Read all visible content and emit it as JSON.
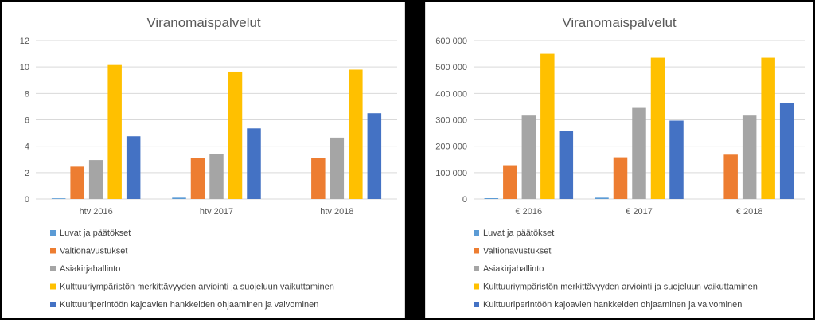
{
  "chart_data": [
    {
      "type": "bar",
      "title": "Viranomaispalvelut",
      "categories": [
        "htv 2016",
        "htv 2017",
        "htv 2018"
      ],
      "ylim": [
        0,
        12
      ],
      "yticks": [
        0,
        2,
        4,
        6,
        8,
        10,
        12
      ],
      "ytick_labels": [
        "0",
        "2",
        "4",
        "6",
        "8",
        "10",
        "12"
      ],
      "grid": true,
      "legend_position": "bottom",
      "series": [
        {
          "name": "Luvat ja päätökset",
          "color": "#5B9BD5",
          "values": [
            0.05,
            0.1,
            0
          ]
        },
        {
          "name": "Valtionavustukset",
          "color": "#ED7D31",
          "values": [
            2.45,
            3.1,
            3.1
          ]
        },
        {
          "name": "Asiakirjahallinto",
          "color": "#A5A5A5",
          "values": [
            2.95,
            3.4,
            4.65
          ]
        },
        {
          "name": "Kulttuuriympäristön merkittävyyden arviointi ja suojeluun vaikuttaminen",
          "color": "#FFC000",
          "values": [
            10.15,
            9.65,
            9.8
          ]
        },
        {
          "name": "Kulttuuriperintöön kajoavien hankkeiden ohjaaminen ja valvominen",
          "color": "#4472C4",
          "values": [
            4.75,
            5.35,
            6.5
          ]
        }
      ]
    },
    {
      "type": "bar",
      "title": "Viranomaispalvelut",
      "categories": [
        "€ 2016",
        "€ 2017",
        "€ 2018"
      ],
      "ylim": [
        0,
        600000
      ],
      "yticks": [
        0,
        100000,
        200000,
        300000,
        400000,
        500000,
        600000
      ],
      "ytick_labels": [
        "0",
        "100 000",
        "200 000",
        "300 000",
        "400 000",
        "500 000",
        "600 000"
      ],
      "grid": true,
      "legend_position": "bottom",
      "series": [
        {
          "name": "Luvat ja päätökset",
          "color": "#5B9BD5",
          "values": [
            3000,
            5000,
            0
          ]
        },
        {
          "name": "Valtionavustukset",
          "color": "#ED7D31",
          "values": [
            128000,
            158000,
            168000
          ]
        },
        {
          "name": "Asiakirjahallinto",
          "color": "#A5A5A5",
          "values": [
            316000,
            345000,
            316000
          ]
        },
        {
          "name": "Kulttuuriympäristön merkittävyyden arviointi ja suojeluun vaikuttaminen",
          "color": "#FFC000",
          "values": [
            550000,
            535000,
            535000
          ]
        },
        {
          "name": "Kulttuuriperintöön kajoavien hankkeiden ohjaaminen ja valvominen",
          "color": "#4472C4",
          "values": [
            258000,
            297000,
            363000
          ]
        }
      ]
    }
  ]
}
